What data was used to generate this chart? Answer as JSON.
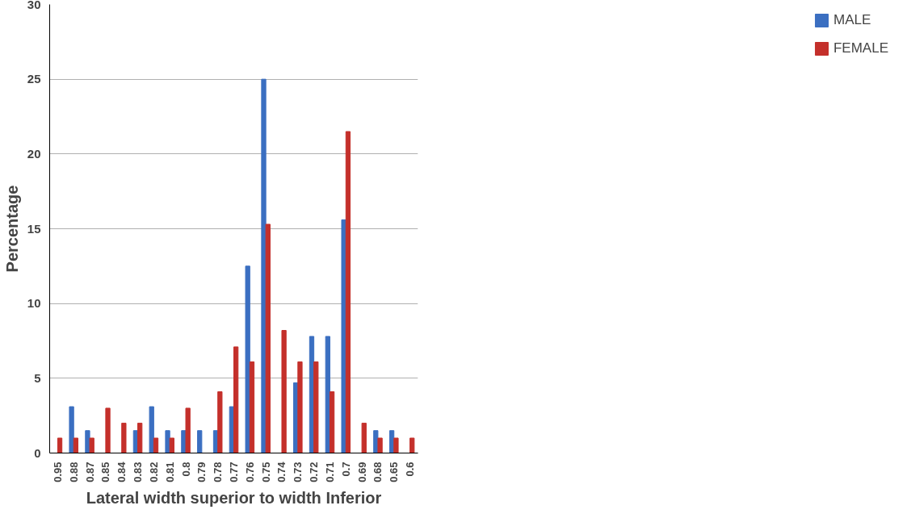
{
  "chart_data": {
    "type": "bar",
    "xlabel": "Lateral width superior to width Inferior",
    "ylabel": "Percentage",
    "categories": [
      "0.95",
      "0.88",
      "0.87",
      "0.85",
      "0.84",
      "0.83",
      "0.82",
      "0.81",
      "0.8",
      "0.79",
      "0.78",
      "0.77",
      "0.76",
      "0.75",
      "0.74",
      "0.73",
      "0.72",
      "0.71",
      "0.7",
      "0.69",
      "0.68",
      "0.65",
      "0.6"
    ],
    "series": [
      {
        "name": "MALE",
        "color": "#3b6fc1",
        "values": [
          0,
          3.1,
          1.5,
          0,
          0,
          1.5,
          3.1,
          1.5,
          1.5,
          1.5,
          1.5,
          3.1,
          12.5,
          25,
          0,
          4.7,
          7.8,
          7.8,
          15.6,
          0,
          1.5,
          1.5,
          0
        ]
      },
      {
        "name": "FEMALE",
        "color": "#c4302b",
        "values": [
          1,
          1,
          1,
          3,
          2,
          2,
          1,
          1,
          3,
          0,
          4.1,
          7.1,
          6.1,
          15.3,
          8.2,
          6.1,
          6.1,
          4.1,
          21.5,
          2,
          1,
          1,
          1
        ]
      }
    ],
    "ylim": [
      0,
      30
    ],
    "yticks": [
      0,
      5,
      10,
      15,
      20,
      25,
      30
    ],
    "grid": "y",
    "legend": "right"
  }
}
